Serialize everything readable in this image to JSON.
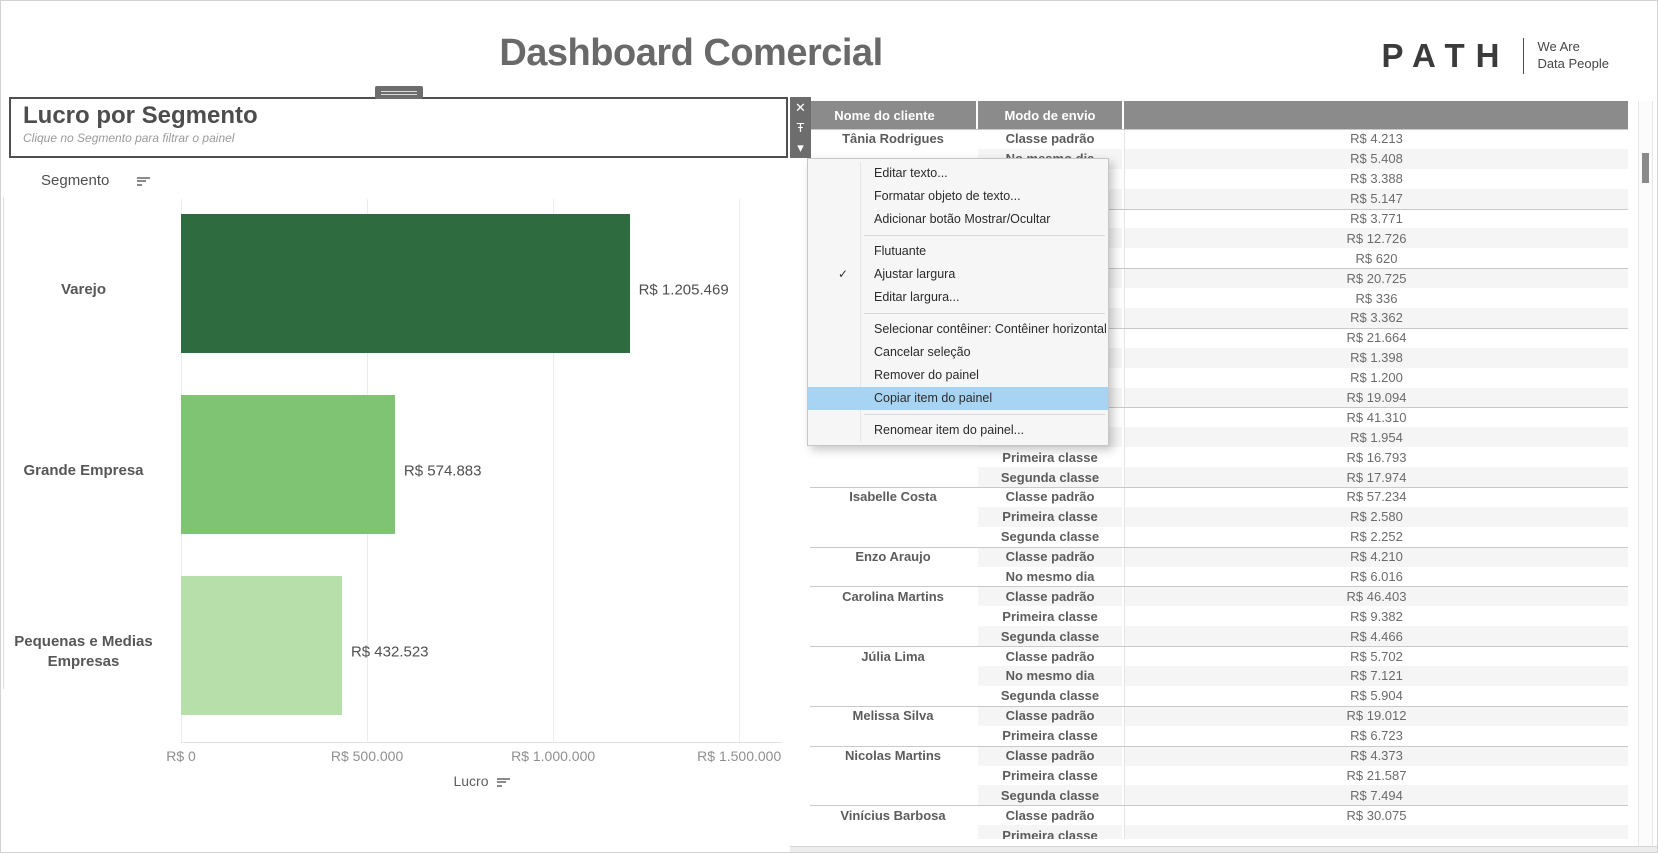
{
  "page": {
    "title": "Dashboard Comercial"
  },
  "logo": {
    "brand": "PATH",
    "tagline_line1": "We Are",
    "tagline_line2": "Data People"
  },
  "text_object": {
    "title": "Lucro por Segmento",
    "subtitle": "Clique no Segmento para filtrar o painel"
  },
  "icons": {
    "close": "✕",
    "pin": "Ŧ",
    "caret": "▾"
  },
  "colors": {
    "table_header_bg": "#8b8b8b",
    "menu_highlight": "#a8d4f3",
    "row_band": "#f5f5f5",
    "bar_colors": [
      "#2e6b3f",
      "#7fc473",
      "#b7dfa9"
    ]
  },
  "chart_data": {
    "type": "bar",
    "orientation": "horizontal",
    "row_label": "Segmento",
    "categories": [
      "Varejo",
      "Grande Empresa",
      "Pequenas e Medias Empresas"
    ],
    "values": [
      1205469,
      574883,
      432523
    ],
    "value_labels": [
      "R$ 1.205.469",
      "R$ 574.883",
      "R$ 432.523"
    ],
    "bar_colors": [
      "#2e6b3f",
      "#7fc473",
      "#b7dfa9"
    ],
    "xlabel": "Lucro",
    "x_ticks": [
      "R$ 0",
      "R$ 500.000",
      "R$ 1.000.000",
      "R$ 1.500.000"
    ],
    "x_tick_values": [
      0,
      500000,
      1000000,
      1500000
    ],
    "xlim": [
      0,
      1615000
    ],
    "grid": true,
    "legend": false
  },
  "table": {
    "columns": [
      "Nome do cliente",
      "Modo de envio",
      ""
    ],
    "rows": [
      {
        "client": "Tânia Rodrigues",
        "mode": "Classe padrão",
        "value": "R$ 4.213",
        "group_start": true
      },
      {
        "client": "",
        "mode": "No mesmo dia",
        "value": "R$ 5.408",
        "group_start": false
      },
      {
        "client": "",
        "mode": "",
        "value": "R$ 3.388",
        "group_start": false
      },
      {
        "client": "",
        "mode": "",
        "value": "R$ 5.147",
        "group_start": false
      },
      {
        "client": "",
        "mode": "",
        "value": "R$ 3.771",
        "group_start": true
      },
      {
        "client": "",
        "mode": "",
        "value": "R$ 12.726",
        "group_start": false
      },
      {
        "client": "",
        "mode": "",
        "value": "R$ 620",
        "group_start": false
      },
      {
        "client": "",
        "mode": "",
        "value": "R$ 20.725",
        "group_start": true
      },
      {
        "client": "",
        "mode": "",
        "value": "R$ 336",
        "group_start": false
      },
      {
        "client": "",
        "mode": "",
        "value": "R$ 3.362",
        "group_start": false
      },
      {
        "client": "",
        "mode": "",
        "value": "R$ 21.664",
        "group_start": true
      },
      {
        "client": "",
        "mode": "",
        "value": "R$ 1.398",
        "group_start": false
      },
      {
        "client": "",
        "mode": "",
        "value": "R$ 1.200",
        "group_start": false
      },
      {
        "client": "",
        "mode": "",
        "value": "R$ 19.094",
        "group_start": false
      },
      {
        "client": "",
        "mode": "",
        "value": "R$ 41.310",
        "group_start": true
      },
      {
        "client": "",
        "mode": "",
        "value": "R$ 1.954",
        "group_start": false
      },
      {
        "client": "",
        "mode": "Primeira classe",
        "value": "R$ 16.793",
        "group_start": false
      },
      {
        "client": "",
        "mode": "Segunda classe",
        "value": "R$ 17.974",
        "group_start": false
      },
      {
        "client": "Isabelle Costa",
        "mode": "Classe padrão",
        "value": "R$ 57.234",
        "group_start": true
      },
      {
        "client": "",
        "mode": "Primeira classe",
        "value": "R$ 2.580",
        "group_start": false
      },
      {
        "client": "",
        "mode": "Segunda classe",
        "value": "R$ 2.252",
        "group_start": false
      },
      {
        "client": "Enzo Araujo",
        "mode": "Classe padrão",
        "value": "R$ 4.210",
        "group_start": true
      },
      {
        "client": "",
        "mode": "No mesmo dia",
        "value": "R$ 6.016",
        "group_start": false
      },
      {
        "client": "Carolina Martins",
        "mode": "Classe padrão",
        "value": "R$ 46.403",
        "group_start": true
      },
      {
        "client": "",
        "mode": "Primeira classe",
        "value": "R$ 9.382",
        "group_start": false
      },
      {
        "client": "",
        "mode": "Segunda classe",
        "value": "R$ 4.466",
        "group_start": false
      },
      {
        "client": "Júlia Lima",
        "mode": "Classe padrão",
        "value": "R$ 5.702",
        "group_start": true
      },
      {
        "client": "",
        "mode": "No mesmo dia",
        "value": "R$ 7.121",
        "group_start": false
      },
      {
        "client": "",
        "mode": "Segunda classe",
        "value": "R$ 5.904",
        "group_start": false
      },
      {
        "client": "Melissa Silva",
        "mode": "Classe padrão",
        "value": "R$ 19.012",
        "group_start": true
      },
      {
        "client": "",
        "mode": "Primeira classe",
        "value": "R$ 6.723",
        "group_start": false
      },
      {
        "client": "Nicolas Martins",
        "mode": "Classe padrão",
        "value": "R$ 4.373",
        "group_start": true
      },
      {
        "client": "",
        "mode": "Primeira classe",
        "value": "R$ 21.587",
        "group_start": false
      },
      {
        "client": "",
        "mode": "Segunda classe",
        "value": "R$ 7.494",
        "group_start": false
      },
      {
        "client": "Vinícius Barbosa",
        "mode": "Classe padrão",
        "value": "R$ 30.075",
        "group_start": true
      },
      {
        "client": "",
        "mode": "Primeira classe",
        "value": "",
        "group_start": false
      }
    ]
  },
  "context_menu": {
    "items": [
      {
        "label": "Editar texto..."
      },
      {
        "label": "Formatar objeto de texto..."
      },
      {
        "label": "Adicionar botão Mostrar/Ocultar"
      },
      {
        "separator": true
      },
      {
        "label": "Flutuante"
      },
      {
        "label": "Ajustar largura",
        "checked": true
      },
      {
        "label": "Editar largura..."
      },
      {
        "separator": true
      },
      {
        "label": "Selecionar contêiner: Contêiner horizontal"
      },
      {
        "label": "Cancelar seleção"
      },
      {
        "label": "Remover do painel"
      },
      {
        "label": "Copiar item do painel",
        "highlighted": true
      },
      {
        "separator": true
      },
      {
        "label": "Renomear item do painel..."
      }
    ]
  }
}
